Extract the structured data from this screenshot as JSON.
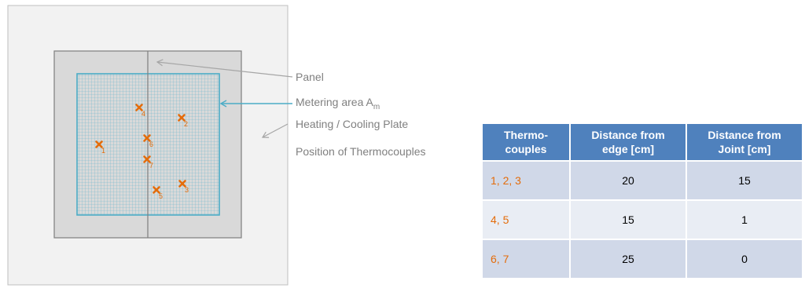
{
  "labels": {
    "panel": "Panel",
    "metering_area": "Metering area A",
    "metering_area_sub": "m",
    "plate": "Heating / Cooling Plate",
    "thermocouples": "Position of Thermocouples"
  },
  "thermocouple_ids": [
    "1",
    "2",
    "3",
    "4",
    "5",
    "6",
    "7"
  ],
  "table": {
    "headers": [
      "Thermo-\ncouples",
      "Distance from\nedge [cm]",
      "Distance from\nJoint [cm]"
    ],
    "rows": [
      {
        "ids": "1, 2, 3",
        "edge": "20",
        "joint": "15"
      },
      {
        "ids": "4, 5",
        "edge": "15",
        "joint": "1"
      },
      {
        "ids": "6, 7",
        "edge": "25",
        "joint": "0"
      }
    ]
  },
  "colors": {
    "plate": "#f2f2f2",
    "panel": "#d9d9d9",
    "grid": "#4bacc6",
    "marker": "#e46c0a",
    "arrow_gray": "#a6a6a6",
    "header": "#4f81bd",
    "row_dark": "#d0d8e8",
    "row_light": "#e9edf4"
  }
}
